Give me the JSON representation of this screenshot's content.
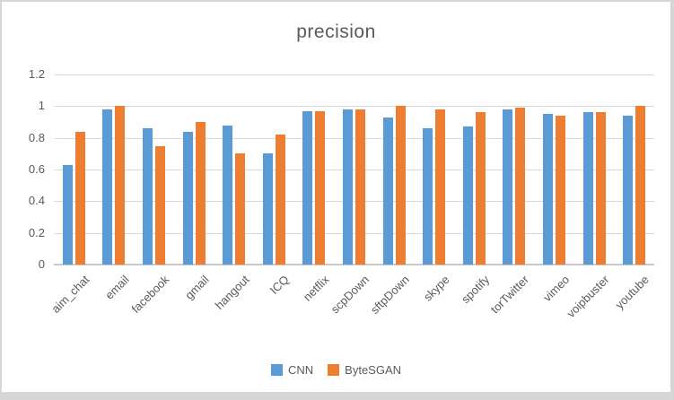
{
  "chart_data": {
    "type": "bar",
    "title": "precision",
    "categories": [
      "aim_chat",
      "email",
      "facebook",
      "gmail",
      "hangout",
      "ICQ",
      "netflix",
      "scpDown",
      "sftpDown",
      "skype",
      "spotify",
      "torTwitter",
      "vimeo",
      "voipbuster",
      "youtube"
    ],
    "series": [
      {
        "name": "CNN",
        "color": "#5B9BD5",
        "values": [
          0.63,
          0.98,
          0.86,
          0.84,
          0.88,
          0.7,
          0.97,
          0.98,
          0.93,
          0.86,
          0.87,
          0.98,
          0.95,
          0.96,
          0.94
        ]
      },
      {
        "name": "ByteSGAN",
        "color": "#ED7D31",
        "values": [
          0.84,
          1.0,
          0.75,
          0.9,
          0.7,
          0.82,
          0.97,
          0.98,
          1.0,
          0.98,
          0.96,
          0.99,
          0.94,
          0.96,
          1.0
        ]
      }
    ],
    "xlabel": "",
    "ylabel": "",
    "ylim": [
      0,
      1.2
    ],
    "ytick_labels": [
      "0",
      "0.2",
      "0.4",
      "0.6",
      "0.8",
      "1",
      "1.2"
    ],
    "grid": "horizontal",
    "legend_position": "bottom"
  },
  "colors": {
    "cnn": "#5B9BD5",
    "bytesgan": "#ED7D31",
    "text": "#595959",
    "gridline": "#D9D9D9",
    "axis_line": "#C9C9C9",
    "frame_border": "#D6D6D6",
    "chart_background": "#FFFFFF"
  }
}
